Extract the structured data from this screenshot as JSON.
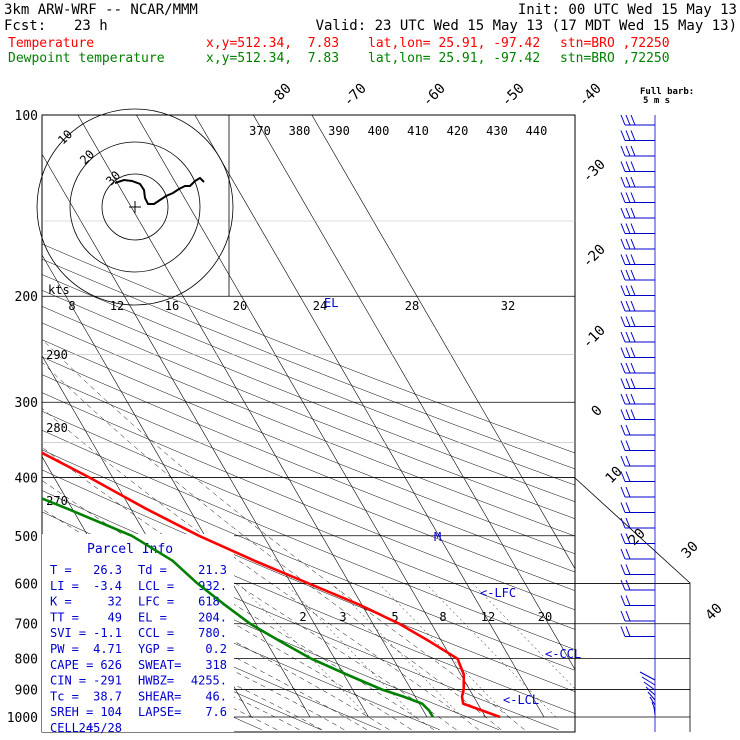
{
  "header": {
    "model": "3km ARW-WRF -- NCAR/MMM",
    "init": "Init: 00 UTC Wed 15 May 13",
    "fcst_label": "Fcst:",
    "fcst_value": "23 h",
    "valid": "Valid: 23 UTC Wed 15 May 13 (17 MDT Wed 15 May 13)",
    "temperature_line": {
      "label": "Temperature",
      "xy": "x,y=512.34,  7.83",
      "latlon": "lat,lon= 25.91, -97.42",
      "stn": "stn=BRO ,72250"
    },
    "dewpoint_line": {
      "label": "Dewpoint temperature",
      "xy": "x,y=512.34,  7.83",
      "latlon": "lat,lon= 25.91, -97.42",
      "stn": "stn=BRO ,72250"
    },
    "barb_legend_1": "Full barb:",
    "barb_legend_2": "5 m s"
  },
  "colors": {
    "temperature": "#ff0000",
    "dewpoint": "#008000",
    "label_blue": "#0000cc",
    "background": "#ffffff"
  },
  "parcel_info": {
    "title": "Parcel Info",
    "rows": [
      [
        "T    =",
        "26.3",
        "Td   =",
        "21.3"
      ],
      [
        "LI   =",
        "-3.4",
        "LCL  =",
        "932."
      ],
      [
        "K    =",
        "32",
        "LFC  =",
        "618."
      ],
      [
        "TT   =",
        "49",
        "EL   =",
        "204."
      ],
      [
        "SVI  =",
        "-1.1",
        "CCL  =",
        "780."
      ],
      [
        "PW   =",
        "4.71",
        "YGP  =",
        "0.2"
      ],
      [
        "CAPE =",
        "626",
        "SWEAT=",
        "318"
      ],
      [
        "CIN  =",
        "-291",
        "HWBZ=",
        "4255."
      ],
      [
        "Tc   =",
        "38.7",
        "SHEAR=",
        "46."
      ],
      [
        "SREH =",
        "104",
        "LAPSE=",
        "7.6"
      ],
      [
        "CELL =",
        "245/28",
        "",
        ""
      ]
    ]
  },
  "level_markers": {
    "lfc": "<-LFC",
    "ccl": "<-CCL",
    "lcl": "<-LCL",
    "el": "EL",
    "m": "M"
  },
  "hodograph": {
    "kts_label": "kts",
    "ring_labels": [
      "30",
      "20",
      "10"
    ]
  },
  "chart_data": {
    "type": "line",
    "title": "",
    "y_axis": {
      "name": "pressure",
      "ticks": [
        100,
        200,
        300,
        400,
        500,
        600,
        700,
        800,
        900,
        1000
      ],
      "scale": "log",
      "range": [
        100,
        1000
      ]
    },
    "isotherm_labels": [
      "-80",
      "-70",
      "-60",
      "-50",
      "-40",
      "-30",
      "-20",
      "-10",
      "0",
      "10",
      "20",
      "30",
      "40"
    ],
    "theta_labels": [
      "370",
      "380",
      "390",
      "400",
      "410",
      "420",
      "430",
      "440"
    ],
    "theta_e_labels": [
      "290",
      "280",
      "270"
    ],
    "mixing_ratio_upper": [
      "8",
      "12",
      "16",
      "20",
      "24",
      "28",
      "32"
    ],
    "mixing_ratio_lower": [
      "2",
      "3",
      "5",
      "8",
      "12",
      "20"
    ],
    "series": [
      {
        "name": "Temperature",
        "points": [
          [
            1000,
            32.5
          ],
          [
            975,
            30
          ],
          [
            950,
            27.5
          ],
          [
            925,
            28
          ],
          [
            900,
            29
          ],
          [
            850,
            30.5
          ],
          [
            800,
            31
          ],
          [
            750,
            28
          ],
          [
            700,
            24.5
          ],
          [
            650,
            19.5
          ],
          [
            600,
            13
          ],
          [
            550,
            6
          ],
          [
            500,
            -1
          ],
          [
            450,
            -7.5
          ],
          [
            400,
            -14
          ],
          [
            350,
            -22
          ],
          [
            300,
            -31
          ],
          [
            250,
            -42
          ],
          [
            200,
            -54
          ],
          [
            175,
            -59.5
          ],
          [
            150,
            -66
          ],
          [
            125,
            -71
          ],
          [
            100,
            -76
          ]
        ]
      },
      {
        "name": "Dewpoint temperature",
        "points": [
          [
            1000,
            21
          ],
          [
            975,
            21
          ],
          [
            950,
            20.5
          ],
          [
            925,
            18
          ],
          [
            900,
            15
          ],
          [
            850,
            10.5
          ],
          [
            800,
            6
          ],
          [
            750,
            2.5
          ],
          [
            700,
            -1
          ],
          [
            650,
            -3.5
          ],
          [
            600,
            -6
          ],
          [
            550,
            -8
          ],
          [
            500,
            -12.5
          ],
          [
            450,
            -21
          ],
          [
            400,
            -31
          ],
          [
            350,
            -39
          ],
          [
            300,
            -46
          ],
          [
            250,
            -56
          ],
          [
            200,
            -67
          ],
          [
            175,
            -74
          ],
          [
            150,
            -80
          ],
          [
            125,
            -84
          ],
          [
            100,
            -84
          ]
        ]
      }
    ]
  }
}
